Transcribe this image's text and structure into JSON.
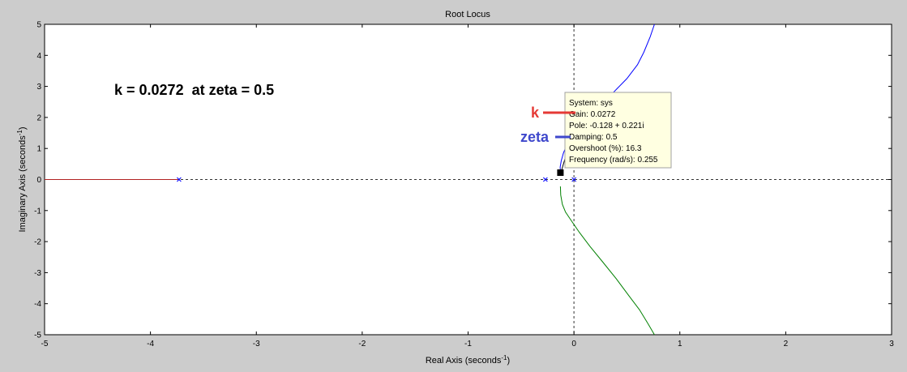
{
  "chart_data": {
    "type": "line",
    "title": "Root Locus",
    "xlabel": {
      "base": "Real Axis (seconds",
      "sup": "-1",
      "end": ")"
    },
    "ylabel": {
      "base": "Imaginary Axis (seconds",
      "sup": "-1",
      "end": ")"
    },
    "xlim": [
      -5,
      3
    ],
    "ylim": [
      -5,
      5
    ],
    "xticks": [
      -5,
      -4,
      -3,
      -2,
      -1,
      0,
      1,
      2,
      3
    ],
    "yticks": [
      -5,
      -4,
      -3,
      -2,
      -1,
      0,
      1,
      2,
      3,
      4,
      5
    ],
    "grid": false,
    "series": [
      {
        "color": "#b22222",
        "x": [
          -5.0,
          -3.73
        ],
        "y": [
          0,
          0
        ]
      },
      {
        "color": "#0000ff",
        "x": [
          -0.128,
          -0.13,
          -0.12,
          -0.1,
          -0.07,
          -0.02,
          0.05,
          0.14,
          0.25,
          0.37,
          0.5,
          0.6,
          0.66,
          0.72,
          0.76
        ],
        "y": [
          0.221,
          0.4,
          0.6,
          0.85,
          1.1,
          1.4,
          1.75,
          2.1,
          2.45,
          2.8,
          3.25,
          3.7,
          4.1,
          4.6,
          5.0
        ]
      },
      {
        "color": "#008000",
        "x": [
          -0.128,
          -0.125,
          -0.11,
          -0.08,
          -0.04,
          0.0,
          0.05,
          0.15,
          0.27,
          0.4,
          0.52,
          0.62,
          0.7,
          0.76
        ],
        "y": [
          -0.221,
          -0.5,
          -0.8,
          -1.05,
          -1.25,
          -1.45,
          -1.7,
          -2.15,
          -2.65,
          -3.2,
          -3.75,
          -4.2,
          -4.65,
          -5.0
        ]
      }
    ],
    "poles": [
      -3.73,
      -0.27,
      0.0
    ],
    "selected_point": {
      "x": -0.128,
      "y": 0.221
    },
    "datatip": {
      "lines": [
        "System: sys",
        "Gain: 0.0272",
        "Pole: -0.128 + 0.221i",
        "Damping: 0.5",
        "Overshoot (%): 16.3",
        "Frequency (rad/s): 0.255"
      ]
    },
    "annotation": "k = 0.0272  at zeta = 0.5",
    "callouts": {
      "k": {
        "label": "k",
        "color": "#e53935"
      },
      "zeta": {
        "label": "zeta",
        "color": "#3f48cc"
      }
    }
  }
}
